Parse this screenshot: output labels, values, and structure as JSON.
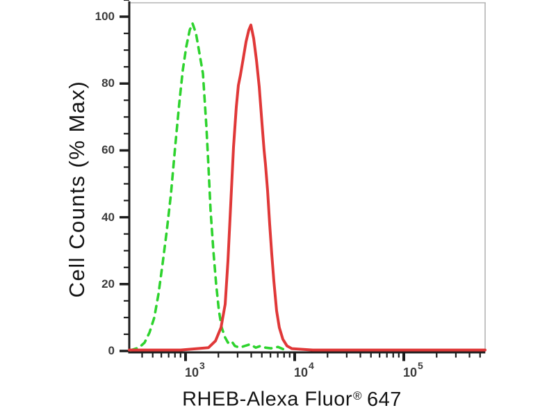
{
  "chart_data": {
    "type": "line",
    "chart_kind": "flow-cytometry-overlay-histogram",
    "title": "",
    "xlabel": "RHEB-Alexa Fluor® 647",
    "ylabel": "Cell Counts (% Max)",
    "x_scale": "log10",
    "xlim": [
      305,
      556000
    ],
    "ylim": [
      0,
      105
    ],
    "grid": false,
    "legend": "none",
    "x_ticks": [
      {
        "value": 1000,
        "base": "10",
        "exp": "3"
      },
      {
        "value": 10000,
        "base": "10",
        "exp": "4"
      },
      {
        "value": 100000,
        "base": "10",
        "exp": "5"
      }
    ],
    "x_minor_ticks_rule": "log-decade subdivisions 2-9 per decade",
    "y_ticks": [
      {
        "value": 0,
        "label": "0"
      },
      {
        "value": 20,
        "label": "20"
      },
      {
        "value": 40,
        "label": "40"
      },
      {
        "value": 60,
        "label": "60"
      },
      {
        "value": 80,
        "label": "80"
      },
      {
        "value": 100,
        "label": "100"
      }
    ],
    "y_minor_tick_step": 5,
    "series": [
      {
        "name": "green-dashed-curve",
        "line_style": "dashed",
        "color": "#2ed32e",
        "peak": {
          "x": 1158,
          "y": 98
        },
        "points": [
          [
            314,
            0.2
          ],
          [
            374,
            1
          ],
          [
            421,
            2.5
          ],
          [
            467,
            5.5
          ],
          [
            517,
            10
          ],
          [
            565,
            17
          ],
          [
            616,
            26
          ],
          [
            673,
            36
          ],
          [
            735,
            47
          ],
          [
            803,
            61
          ],
          [
            876,
            74
          ],
          [
            943,
            84
          ],
          [
            1015,
            91
          ],
          [
            1092,
            96
          ],
          [
            1158,
            98
          ],
          [
            1246,
            95
          ],
          [
            1341,
            89
          ],
          [
            1443,
            83
          ],
          [
            1553,
            67
          ],
          [
            1623,
            55
          ],
          [
            1695,
            42
          ],
          [
            1798,
            30
          ],
          [
            1906,
            20
          ],
          [
            2022,
            12
          ],
          [
            2143,
            7
          ],
          [
            2308,
            4
          ],
          [
            2448,
            2.5
          ],
          [
            2633,
            3
          ],
          [
            2833,
            1.5
          ],
          [
            3139,
            1
          ],
          [
            3477,
            1.5
          ],
          [
            3912,
            2
          ],
          [
            4397,
            1
          ],
          [
            4872,
            1.5
          ],
          [
            5397,
            1
          ],
          [
            6068,
            0.8
          ],
          [
            7030,
            1.2
          ],
          [
            7906,
            0.5
          ],
          [
            8511,
            0.3
          ]
        ]
      },
      {
        "name": "red-solid-curve",
        "line_style": "solid",
        "color": "#e03838",
        "peak": {
          "x": 3971,
          "y": 97.5
        },
        "points": [
          [
            305,
            0.3
          ],
          [
            903,
            0.3
          ],
          [
            1623,
            1
          ],
          [
            1879,
            3
          ],
          [
            2113,
            7
          ],
          [
            2308,
            14
          ],
          [
            2448,
            27
          ],
          [
            2594,
            44
          ],
          [
            2750,
            61
          ],
          [
            2917,
            73
          ],
          [
            3048,
            79.5
          ],
          [
            3184,
            82.5
          ],
          [
            3377,
            87.5
          ],
          [
            3581,
            92.5
          ],
          [
            3798,
            96
          ],
          [
            3971,
            97.5
          ],
          [
            4212,
            93.5
          ],
          [
            4464,
            87
          ],
          [
            4733,
            79
          ],
          [
            5018,
            68
          ],
          [
            5244,
            60
          ],
          [
            5397,
            56
          ],
          [
            5643,
            48
          ],
          [
            5898,
            38
          ],
          [
            6166,
            29
          ],
          [
            6445,
            21
          ],
          [
            6829,
            12
          ],
          [
            7235,
            7
          ],
          [
            7798,
            3.5
          ],
          [
            8511,
            1.5
          ],
          [
            9429,
            0.7
          ],
          [
            14650,
            0.3
          ],
          [
            73450,
            0.3
          ],
          [
            556000,
            0.3
          ]
        ]
      }
    ]
  },
  "x_axis_title_parts": {
    "main": "RHEB-Alexa Fluor",
    "registered": "®",
    "suffix": "647"
  },
  "colors": {
    "background": "#ffffff",
    "axis": "#1c1c1c",
    "frame": "#b3b3b3",
    "tick_label": "#3b3b3b",
    "title_text": "#141414"
  }
}
